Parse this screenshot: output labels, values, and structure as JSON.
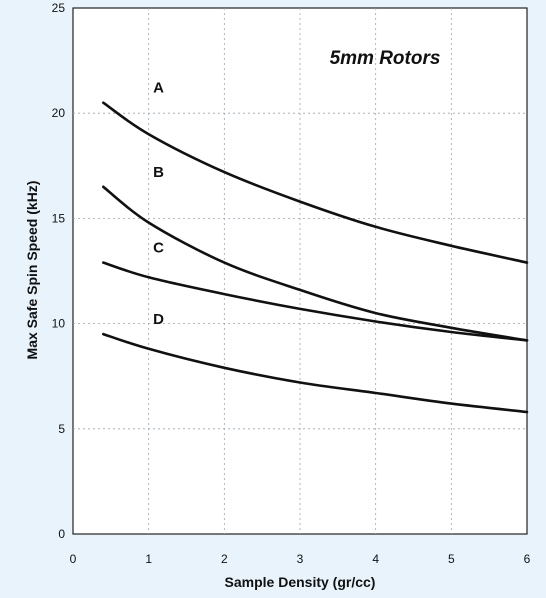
{
  "chart_data": {
    "type": "line",
    "title": "5mm Rotors",
    "xlabel": "Sample Density (gr/cc)",
    "ylabel": "Max Safe Spin Speed (kHz)",
    "xlim": [
      0,
      6
    ],
    "ylim": [
      0,
      25
    ],
    "x_ticks": [
      "0",
      "1",
      "2",
      "3",
      "4",
      "5",
      "6"
    ],
    "y_ticks": [
      "0",
      "5",
      "10",
      "15",
      "20",
      "25"
    ],
    "grid": true,
    "series": [
      {
        "name": "A",
        "x": [
          0.4,
          1,
          2,
          3,
          4,
          5,
          6
        ],
        "y": [
          20.5,
          19.0,
          17.2,
          15.8,
          14.6,
          13.7,
          12.9
        ]
      },
      {
        "name": "B",
        "x": [
          0.4,
          1,
          2,
          3,
          4,
          5,
          6
        ],
        "y": [
          16.5,
          14.8,
          12.9,
          11.6,
          10.5,
          9.8,
          9.2
        ]
      },
      {
        "name": "C",
        "x": [
          0.4,
          1,
          2,
          3,
          4,
          5,
          6
        ],
        "y": [
          12.9,
          12.2,
          11.4,
          10.7,
          10.1,
          9.6,
          9.2
        ]
      },
      {
        "name": "D",
        "x": [
          0.4,
          1,
          2,
          3,
          4,
          5,
          6
        ],
        "y": [
          9.5,
          8.8,
          7.9,
          7.2,
          6.7,
          6.2,
          5.8
        ]
      }
    ]
  }
}
